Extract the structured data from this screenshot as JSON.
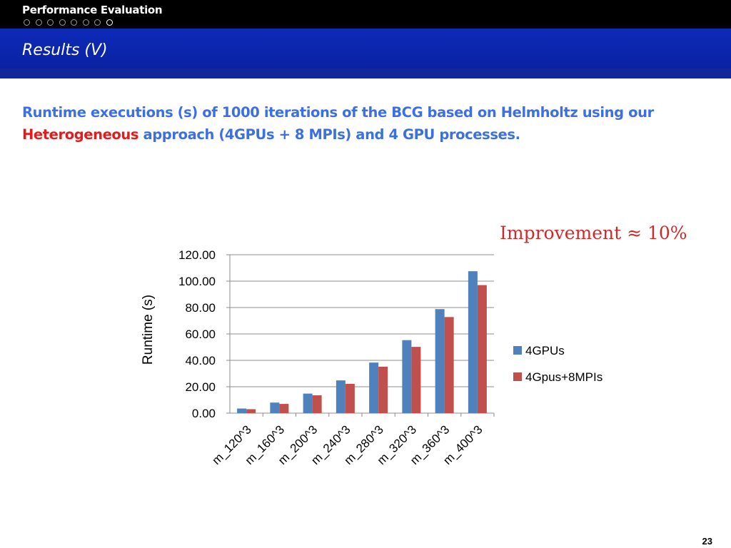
{
  "header": {
    "section_title": "Performance Evaluation",
    "nav_dots_total": 8,
    "nav_dot_active_index": 7,
    "slide_title": "Results (V)"
  },
  "body": {
    "text_part1": "Runtime executions (s)  of 1000 iterations of the BCG based on Helmholtz using our ",
    "text_highlight": "Heterogeneous",
    "text_part2": " approach  (4GPUs + 8 MPIs) and 4 GPU processes.",
    "improvement": "Improvement ≈ 10%"
  },
  "colors": {
    "header_bg": "#000000",
    "band_bg": "#0a22a4",
    "text_blue": "#3c6fe0",
    "text_highlight": "#e01d1d",
    "improvement": "#cf2a2a",
    "series_4gpus": "#4f81bd",
    "series_4gpus_8mpis": "#c0504d"
  },
  "chart_data": {
    "type": "bar",
    "title": "",
    "xlabel": "",
    "ylabel": "Runtime (s)",
    "categories": [
      "m_120^3",
      "m_160^3",
      "m_200^3",
      "m_240^3",
      "m_280^3",
      "m_320^3",
      "m_360^3",
      "m_400^3"
    ],
    "series": [
      {
        "name": "4GPUs",
        "color": "#4f81bd",
        "values": [
          3.5,
          8.0,
          14.8,
          24.8,
          38.3,
          55.3,
          78.8,
          107.5
        ]
      },
      {
        "name": "4Gpus+8MPIs",
        "color": "#c0504d",
        "values": [
          3.0,
          7.0,
          13.5,
          22.2,
          35.2,
          50.2,
          72.8,
          97.0
        ]
      }
    ],
    "ylim": [
      0,
      120
    ],
    "yticks": [
      0,
      20,
      40,
      60,
      80,
      100,
      120
    ],
    "ytick_labels": [
      "0.00",
      "20.00",
      "40.00",
      "60.00",
      "80.00",
      "100.00",
      "120.00"
    ],
    "grid": true,
    "legend_position": "right"
  },
  "footer": {
    "page_number": "23"
  }
}
